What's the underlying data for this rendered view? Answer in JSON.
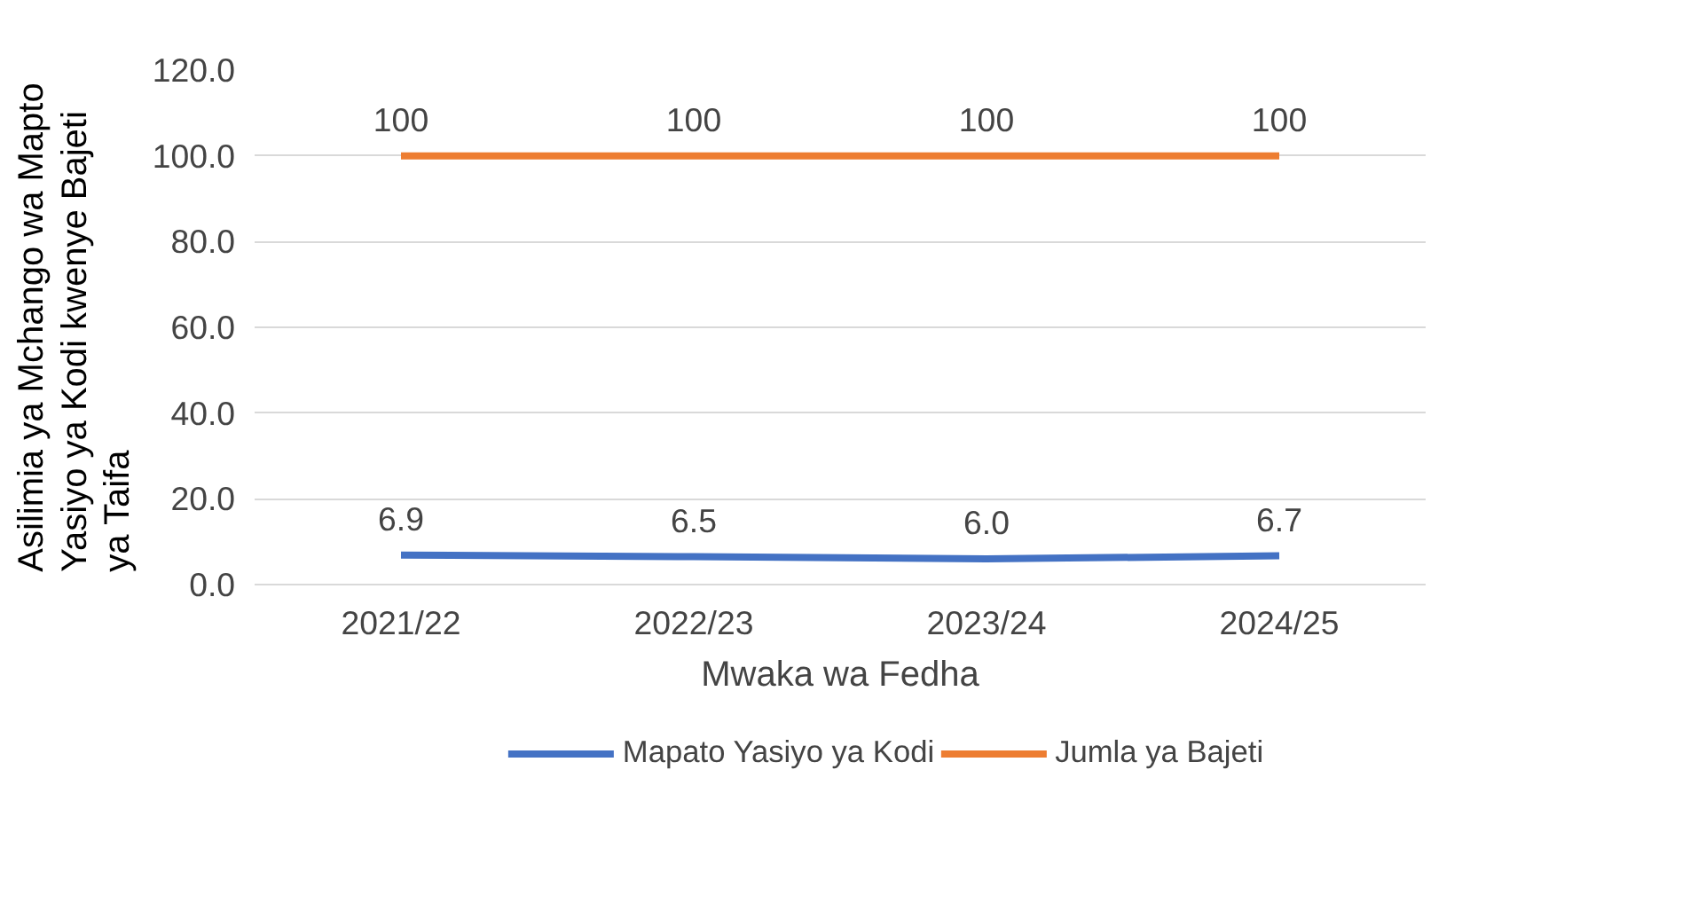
{
  "chart_data": {
    "type": "line",
    "xlabel": "Mwaka wa Fedha",
    "ylabel": "Asilimia ya Mchango wa Mapto Yasiyo ya Kodi kwenye Bajeti ya Taifa",
    "categories": [
      "2021/22",
      "2022/23",
      "2023/24",
      "2024/25"
    ],
    "series": [
      {
        "name": "Mapato Yasiyo ya Kodi",
        "color": "#4472c4",
        "values": [
          6.9,
          6.5,
          6.0,
          6.7
        ],
        "value_labels": [
          "6.9",
          "6.5",
          "6.0",
          "6.7"
        ]
      },
      {
        "name": "Jumla ya Bajeti",
        "color": "#ed7d31",
        "values": [
          100,
          100,
          100,
          100
        ],
        "value_labels": [
          "100",
          "100",
          "100",
          "100"
        ]
      }
    ],
    "ylim": [
      0,
      120
    ],
    "yticks": [
      {
        "value": 0,
        "label": "0.0"
      },
      {
        "value": 20,
        "label": "20.0"
      },
      {
        "value": 40,
        "label": "40.0"
      },
      {
        "value": 60,
        "label": "60.0"
      },
      {
        "value": 80,
        "label": "80.0"
      },
      {
        "value": 100,
        "label": "100.0"
      },
      {
        "value": 120,
        "label": "120.0"
      }
    ],
    "grid": "y",
    "legend": "bottom",
    "marker": "none",
    "line_style": "solid"
  }
}
